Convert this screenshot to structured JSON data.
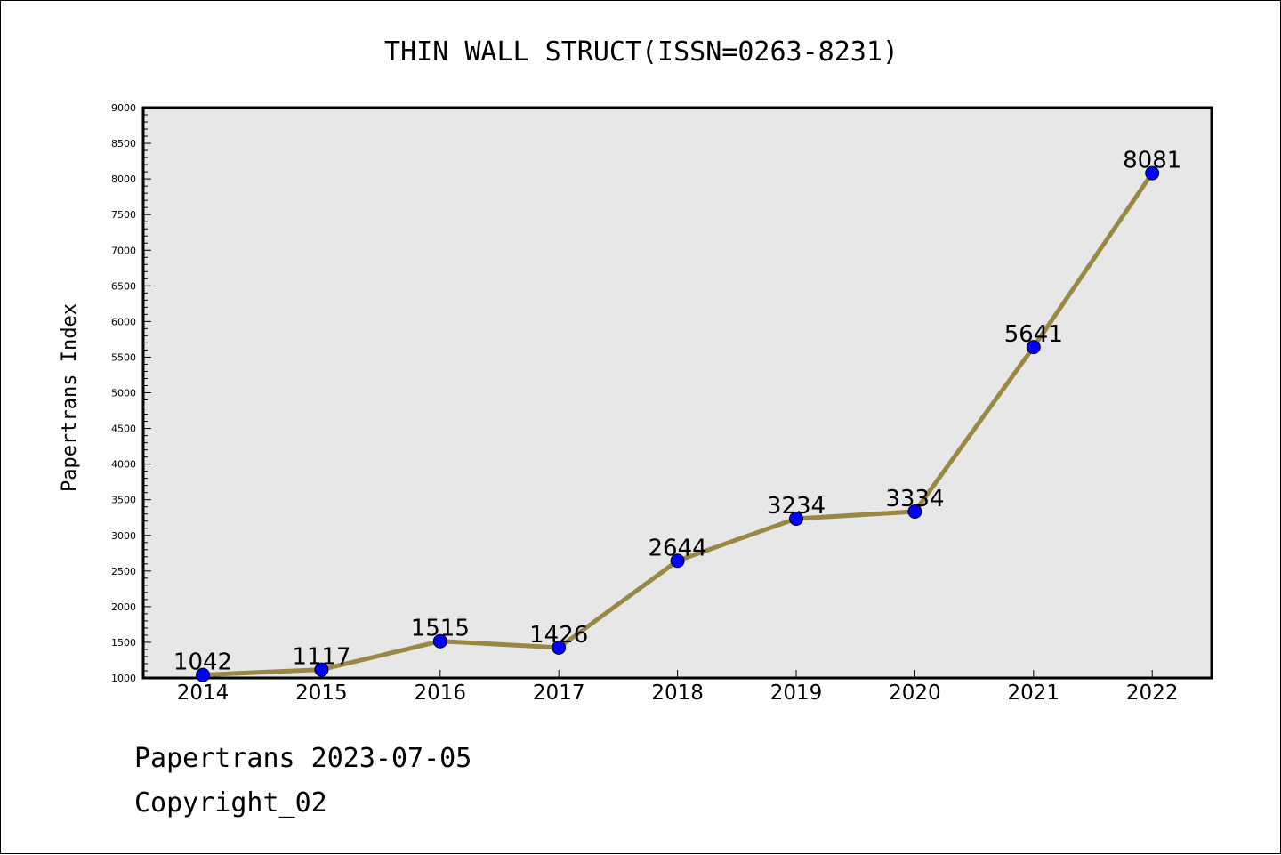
{
  "chart_data": {
    "type": "line",
    "title": "THIN WALL STRUCT(ISSN=0263-8231)",
    "ylabel": "Papertrans Index",
    "xlabel": "",
    "categories": [
      "2014",
      "2015",
      "2016",
      "2017",
      "2018",
      "2019",
      "2020",
      "2021",
      "2022"
    ],
    "series": [
      {
        "values": [
          1042,
          1117,
          1515,
          1426,
          2644,
          3234,
          3334,
          5641,
          8081
        ]
      }
    ],
    "data_labels": [
      "1042",
      "1117",
      "1515",
      "1426",
      "2644",
      "3234",
      "3334",
      "5641",
      "8081"
    ],
    "ylim": [
      1000,
      9000
    ],
    "yticks": [
      "1000",
      "1500",
      "2000",
      "2500",
      "3000",
      "3500",
      "4000",
      "4500",
      "5000",
      "5500",
      "6000",
      "6500",
      "7000",
      "7500",
      "8000",
      "8500",
      "9000"
    ],
    "grid": false,
    "legend": "none",
    "colors": {
      "line": "#998844",
      "marker": "#0000ff",
      "plot_background": "#e7e7e7"
    }
  },
  "footer": {
    "line1": "Papertrans 2023-07-05",
    "line2": "Copyright_02"
  }
}
